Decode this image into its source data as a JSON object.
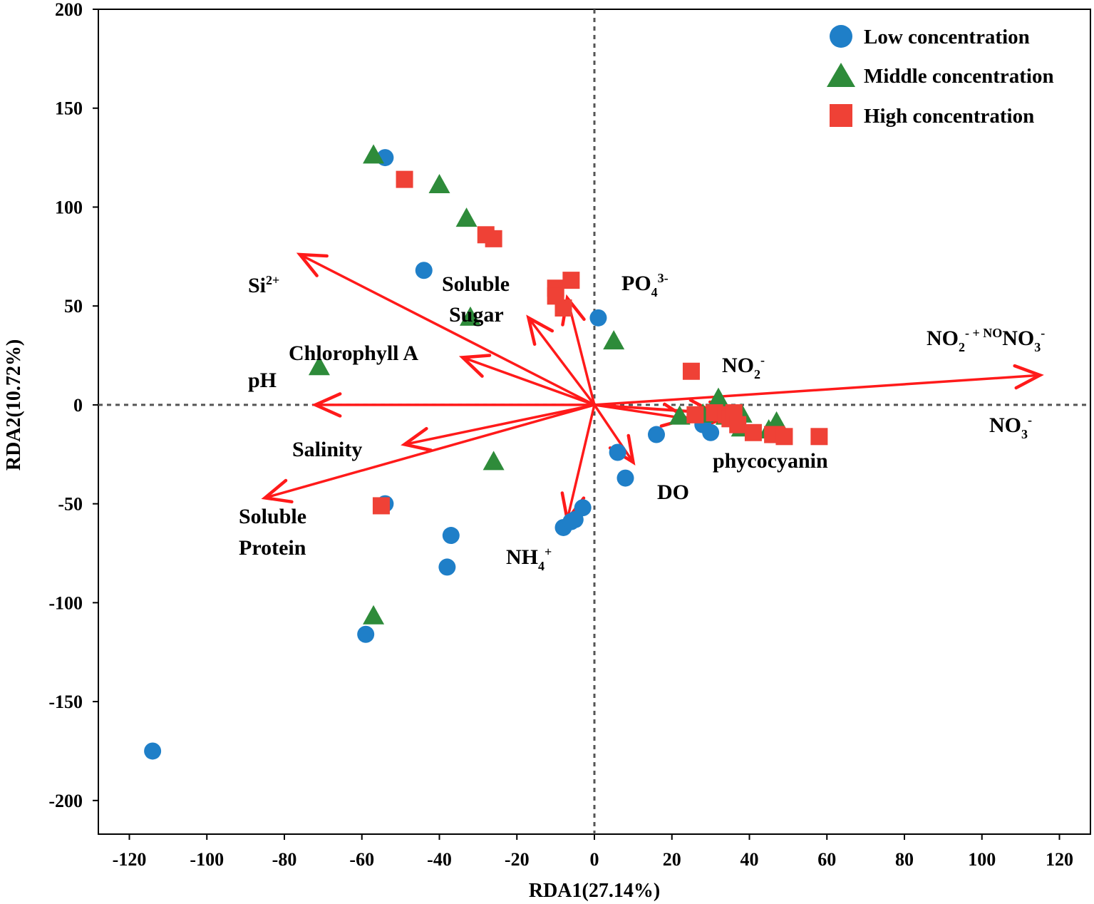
{
  "chart_data": {
    "type": "scatter",
    "subtype": "rda-biplot",
    "title": "",
    "xlabel": "RDA1(27.14%)",
    "ylabel": "RDA2(10.72%)",
    "xlim": [
      -128,
      128
    ],
    "ylim": [
      -217,
      200
    ],
    "xticks": [
      -120,
      -100,
      -80,
      -60,
      -40,
      -20,
      0,
      20,
      40,
      60,
      80,
      100,
      120
    ],
    "yticks": [
      -200,
      -150,
      -100,
      -50,
      0,
      50,
      100,
      150,
      200
    ],
    "grid": false,
    "zero_lines": true,
    "legend_position": "top-right",
    "colors": {
      "low": "#1f7fc8",
      "middle": "#2e8b3a",
      "high": "#ef4136",
      "arrow": "#ff1a1a"
    },
    "series": [
      {
        "name": "Low concentration",
        "key": "low",
        "marker": "circle",
        "points": [
          [
            -114,
            -175
          ],
          [
            -59,
            -116
          ],
          [
            -54,
            125
          ],
          [
            -54,
            -50
          ],
          [
            -44,
            68
          ],
          [
            -37,
            -66
          ],
          [
            -38,
            -82
          ],
          [
            -8,
            -62
          ],
          [
            -6,
            -59
          ],
          [
            -5,
            -58
          ],
          [
            -3,
            -52
          ],
          [
            1,
            44
          ],
          [
            6,
            -24
          ],
          [
            8,
            -37
          ],
          [
            16,
            -15
          ],
          [
            28,
            -10
          ],
          [
            30,
            -14
          ],
          [
            35,
            -5
          ]
        ]
      },
      {
        "name": "Middle concentration",
        "key": "middle",
        "marker": "triangle",
        "points": [
          [
            -57,
            126
          ],
          [
            -40,
            111
          ],
          [
            -33,
            94
          ],
          [
            -32,
            44
          ],
          [
            -71,
            19
          ],
          [
            -26,
            -29
          ],
          [
            -57,
            -107
          ],
          [
            5,
            32
          ],
          [
            22,
            -6
          ],
          [
            28,
            -5
          ],
          [
            32,
            3
          ],
          [
            34,
            -6
          ],
          [
            38,
            -5
          ],
          [
            38,
            -12
          ],
          [
            45,
            -13
          ],
          [
            47,
            -9
          ]
        ]
      },
      {
        "name": "High concentration",
        "key": "high",
        "marker": "square",
        "points": [
          [
            -49,
            114
          ],
          [
            -28,
            86
          ],
          [
            -26,
            84
          ],
          [
            -10,
            59
          ],
          [
            -10,
            55
          ],
          [
            -6,
            63
          ],
          [
            -8,
            49
          ],
          [
            -55,
            -51
          ],
          [
            25,
            17
          ],
          [
            26,
            -5
          ],
          [
            31,
            -4
          ],
          [
            34,
            -5
          ],
          [
            35,
            -7
          ],
          [
            36,
            -4
          ],
          [
            37,
            -10
          ],
          [
            41,
            -14
          ],
          [
            46,
            -15
          ],
          [
            47,
            -15
          ],
          [
            49,
            -16
          ],
          [
            58,
            -16
          ]
        ]
      }
    ],
    "vectors": [
      {
        "name": "Si2+",
        "x": -76,
        "y": 76,
        "label": [
          "Si",
          "2+",
          ""
        ]
      },
      {
        "name": "Soluble Sugar",
        "x": -17,
        "y": 44,
        "label_lines": [
          "Soluble",
          "Sugar"
        ]
      },
      {
        "name": "PO43-",
        "x": -7,
        "y": 54,
        "label": [
          "PO",
          "4",
          "3-"
        ]
      },
      {
        "name": "Chlorophyll A",
        "x": -34,
        "y": 24,
        "label_lines": [
          "Chlorophyll A"
        ]
      },
      {
        "name": "pH",
        "x": -72,
        "y": 0,
        "label_lines": [
          "pH"
        ]
      },
      {
        "name": "Salinity",
        "x": -49,
        "y": -20,
        "label_lines": [
          "Salinity"
        ]
      },
      {
        "name": "Soluble Protein",
        "x": -85,
        "y": -47,
        "label_lines": [
          "Soluble",
          "Protein"
        ]
      },
      {
        "name": "NH4+",
        "x": -7,
        "y": -58,
        "label": [
          "NH",
          "4",
          "+"
        ]
      },
      {
        "name": "DO",
        "x": 10,
        "y": -29,
        "label_lines": [
          "DO"
        ]
      },
      {
        "name": "NO2- + NO3-",
        "x": 115,
        "y": 15,
        "label": [
          "NO",
          "2",
          "- + NO",
          "3",
          "-"
        ]
      },
      {
        "name": "NO3-",
        "x": 36,
        "y": -5,
        "label": [
          "NO",
          "3",
          "-"
        ]
      },
      {
        "name": "NO2-",
        "x": 31,
        "y": -4,
        "label": [
          "NO",
          "2",
          "-"
        ]
      },
      {
        "name": "phycocyanin",
        "x": 24,
        "y": -7,
        "label_lines": [
          "phycocyanin"
        ]
      }
    ]
  }
}
